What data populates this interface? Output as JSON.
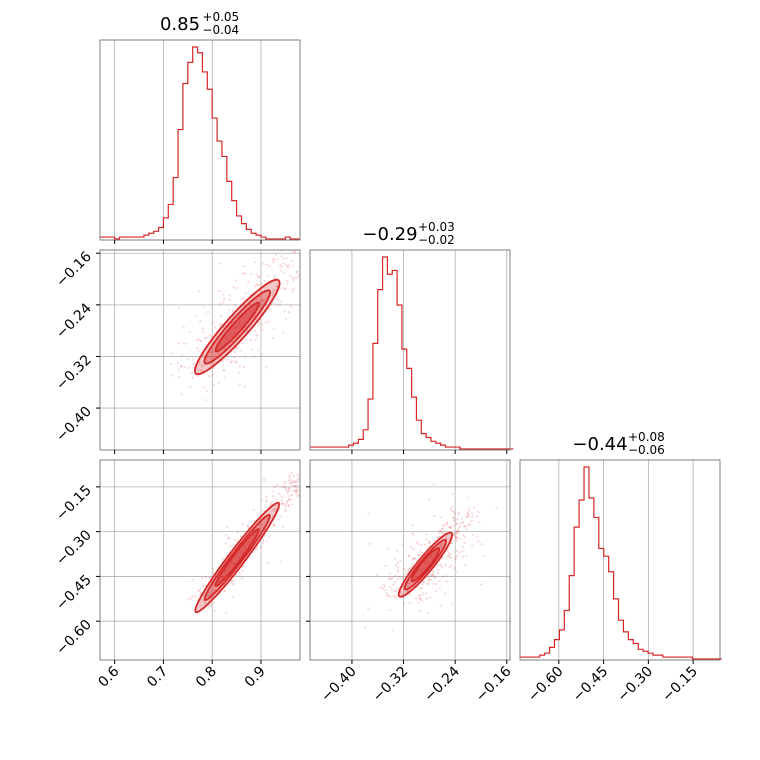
{
  "chart_data": {
    "type": "corner",
    "color": "#d62728",
    "gridColor": "#b0b0b0",
    "parameters": [
      {
        "title": {
          "main": "0.85",
          "plus": "+0.05",
          "minus": "−0.04"
        },
        "range": [
          0.57,
          0.98
        ],
        "ticks": [
          0.6,
          0.7,
          0.8,
          0.9
        ],
        "tickLabels": [
          "0.6",
          "0.7",
          "0.8",
          "0.9"
        ]
      },
      {
        "title": {
          "main": "−0.29",
          "plus": "+0.03",
          "minus": "−0.02"
        },
        "range": [
          -0.465,
          -0.155
        ],
        "ticks": [
          -0.4,
          -0.32,
          -0.24,
          -0.16
        ],
        "tickLabels": [
          "−0.40",
          "−0.32",
          "−0.24",
          "−0.16"
        ]
      },
      {
        "title": {
          "main": "−0.44",
          "plus": "+0.08",
          "minus": "−0.06"
        },
        "range": [
          -0.73,
          -0.06
        ],
        "ticks": [
          -0.6,
          -0.45,
          -0.3,
          -0.15
        ],
        "tickLabels": [
          "−0.60",
          "−0.45",
          "−0.30",
          "−0.15"
        ]
      }
    ],
    "histograms": [
      {
        "param": 0,
        "binStart": 0.57,
        "binWidth": 0.01,
        "counts": [
          1,
          1,
          1,
          0,
          1,
          1,
          1,
          1,
          1,
          2,
          3,
          4,
          6,
          11,
          18,
          32,
          57,
          81,
          92,
          100,
          97,
          87,
          78,
          63,
          51,
          43,
          30,
          20,
          12,
          8,
          5,
          3,
          2,
          1,
          0,
          0,
          0,
          0,
          1,
          0,
          0
        ]
      },
      {
        "param": 1,
        "binStart": -0.465,
        "binWidth": 0.0075,
        "counts": [
          1,
          1,
          1,
          1,
          1,
          1,
          1,
          1,
          2,
          3,
          5,
          10,
          26,
          55,
          83,
          100,
          91,
          93,
          75,
          52,
          42,
          27,
          15,
          8,
          6,
          4,
          3,
          2,
          1,
          1,
          1,
          0,
          0,
          0,
          0,
          0,
          0,
          0,
          0,
          0,
          0,
          0
        ]
      },
      {
        "param": 2,
        "binStart": -0.73,
        "binWidth": 0.0165,
        "counts": [
          1,
          1,
          1,
          1,
          2,
          3,
          6,
          10,
          15,
          25,
          43,
          68,
          82,
          99,
          83,
          73,
          57,
          53,
          45,
          31,
          20,
          14,
          10,
          8,
          5,
          4,
          3,
          2,
          2,
          1,
          1,
          1,
          1,
          1,
          1,
          0,
          0,
          0,
          0,
          0,
          0
        ]
      }
    ],
    "joint": [
      {
        "x": 0,
        "y": 1,
        "trend": {
          "x": [
            0.78,
            0.98
          ],
          "y": [
            -0.335,
            -0.165
          ]
        },
        "xSpread": 0.035,
        "ySpread": 0.018
      },
      {
        "x": 0,
        "y": 2,
        "trend": {
          "x": [
            0.78,
            0.98
          ],
          "y": [
            -0.54,
            -0.11
          ]
        },
        "xSpread": 0.012,
        "ySpread": 0.02
      },
      {
        "x": 1,
        "y": 2,
        "trend": {
          "x": [
            -0.32,
            -0.225
          ],
          "y": [
            -0.5,
            -0.25
          ]
        },
        "xSpread": 0.02,
        "ySpread": 0.035
      }
    ]
  }
}
